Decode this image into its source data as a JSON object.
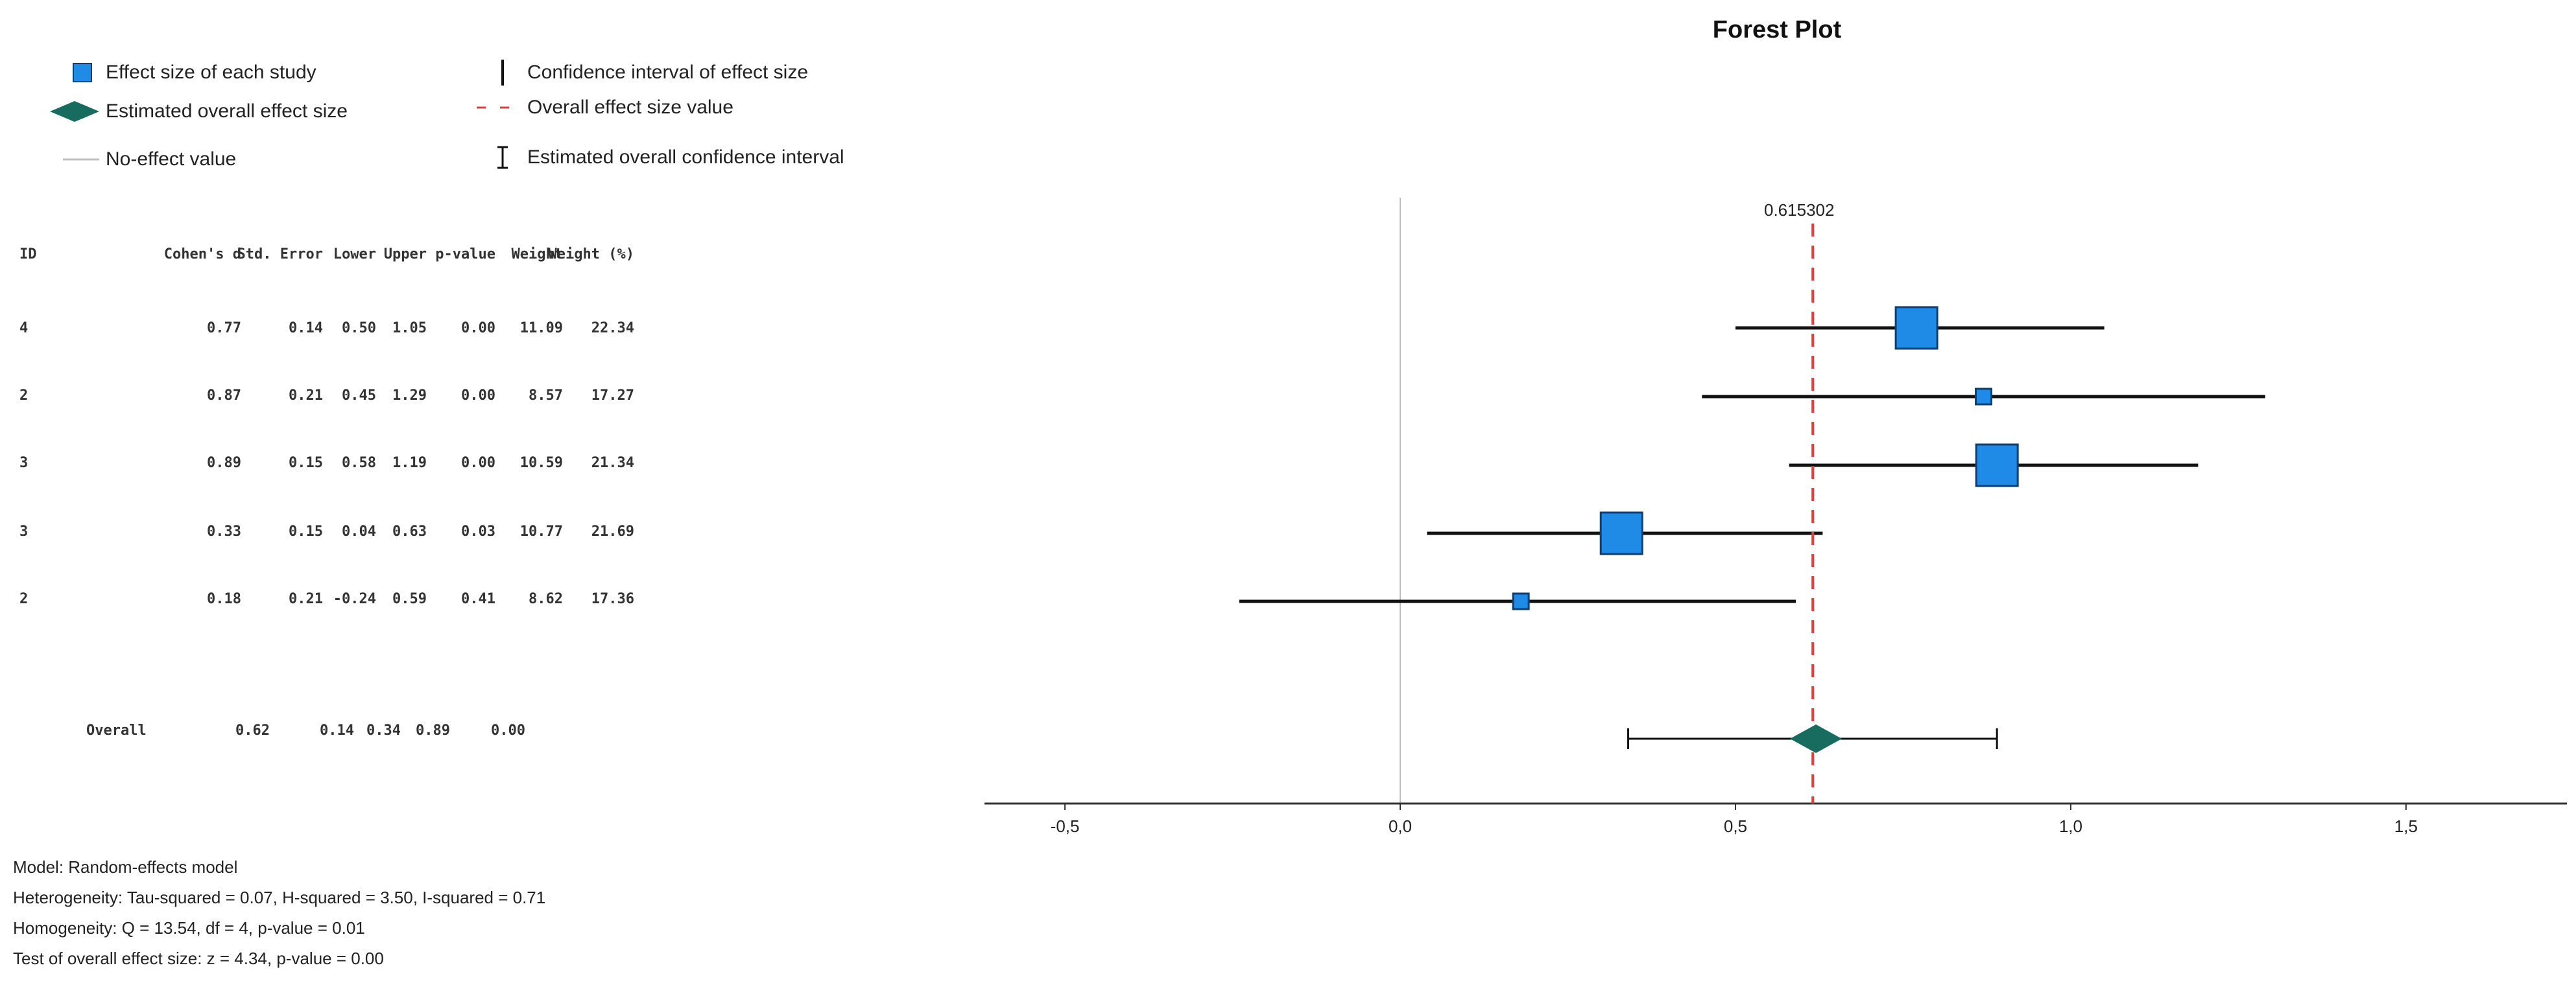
{
  "legend": {
    "study": "Effect size of each study",
    "overall": "Estimated overall effect size",
    "noeffect": "No-effect value",
    "ci": "Confidence interval of effect size",
    "overall_value": "Overall effect size value",
    "overall_ci": "Estimated overall confidence interval"
  },
  "table": {
    "headers": [
      "ID",
      "Cohen's d",
      "Std. Error",
      "Lower",
      "Upper",
      "p-value",
      "Weight",
      "Weight (%)"
    ],
    "rows": [
      [
        "4",
        "0.77",
        "0.14",
        "0.50",
        "1.05",
        "0.00",
        "11.09",
        "22.34"
      ],
      [
        "2",
        "0.87",
        "0.21",
        "0.45",
        "1.29",
        "0.00",
        "8.57",
        "17.27"
      ],
      [
        "3",
        "0.89",
        "0.15",
        "0.58",
        "1.19",
        "0.00",
        "10.59",
        "21.34"
      ],
      [
        "3",
        "0.33",
        "0.15",
        "0.04",
        "0.63",
        "0.03",
        "10.77",
        "21.69"
      ],
      [
        "2",
        "0.18",
        "0.21",
        "-0.24",
        "0.59",
        "0.41",
        "8.62",
        "17.36"
      ]
    ],
    "overall": [
      "Overall",
      "0.62",
      "0.14",
      "0.34",
      "0.89",
      "0.00"
    ]
  },
  "stats": {
    "model": "Model: Random-effects model",
    "heterogeneity": "Heterogeneity: Tau-squared = 0.07, H-squared = 3.50, I-squared = 0.71",
    "homogeneity": "Homogeneity: Q = 13.54, df = 4, p-value = 0.01",
    "test": "Test of overall effect size: z = 4.34, p-value = 0.00"
  },
  "colors": {
    "study_fill": "#1f8be6",
    "study_stroke": "#0d3f73",
    "overall_fill": "#176b5f",
    "overall_line": "#e0403a",
    "noeffect_line": "#bfbfbf",
    "ci_line": "#111111"
  },
  "chart_data": {
    "type": "forest",
    "title": "Forest Plot",
    "overall_label": "0.615302",
    "xlim": [
      -0.62,
      1.74
    ],
    "ticks": [
      -0.5,
      0.0,
      0.5,
      1.0,
      1.5
    ],
    "tick_labels": [
      "-0,5",
      "0,0",
      "0,5",
      "1,0",
      "1,5"
    ],
    "no_effect": 0.0,
    "overall_effect": 0.615302,
    "studies": [
      {
        "est": 0.77,
        "lower": 0.5,
        "upper": 1.05,
        "weight_pct": 22.34
      },
      {
        "est": 0.87,
        "lower": 0.45,
        "upper": 1.29,
        "weight_pct": 17.27
      },
      {
        "est": 0.89,
        "lower": 0.58,
        "upper": 1.19,
        "weight_pct": 21.34
      },
      {
        "est": 0.33,
        "lower": 0.04,
        "upper": 0.63,
        "weight_pct": 21.69
      },
      {
        "est": 0.18,
        "lower": -0.24,
        "upper": 0.59,
        "weight_pct": 17.36
      }
    ],
    "overall": {
      "est": 0.62,
      "lower": 0.34,
      "upper": 0.89
    },
    "grid": false,
    "legend_position": "top-left"
  }
}
